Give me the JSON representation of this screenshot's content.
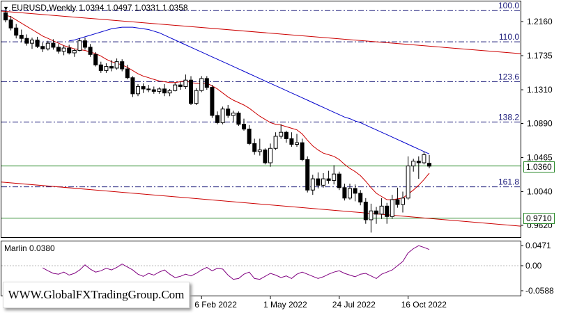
{
  "header": {
    "symbol_timeframe": "EURUSD,Weekly",
    "ohlc": "1.0394 1.0497 1.0331 1.0358"
  },
  "price_axis": [
    "1.2160",
    "1.1735",
    "1.1310",
    "1.0890",
    "1.0465",
    "1.0040",
    "0.9620"
  ],
  "fibonacci_levels": [
    {
      "label": "100.0",
      "value": 1.2297
    },
    {
      "label": "110.0",
      "value": 1.1908
    },
    {
      "label": "123.6",
      "value": 1.1411
    },
    {
      "label": "138.2",
      "value": 1.0908
    },
    {
      "label": "161.8",
      "value": 1.01
    }
  ],
  "horizontal_lines": [
    {
      "label": "1.0360",
      "value": 1.036,
      "color": "#2e8b2e"
    },
    {
      "label": "0.9710",
      "value": 0.971,
      "color": "#2e8b2e"
    }
  ],
  "time_axis": [
    "6 Feb 2022",
    "1 May 2022",
    "24 Jul 2022",
    "16 Oct 2022"
  ],
  "indicator": {
    "name": "Marlin 0.0380",
    "axis": [
      "0.0471",
      "0.00",
      "-0.0588"
    ]
  },
  "watermark": "WWW.GlobalFXTradingGroup.Com",
  "colors": {
    "bull": "#ffffff",
    "bear": "#000000",
    "ma_fast": "#cc0000",
    "ma_slow": "#0000cc",
    "channel": "#cc0000",
    "oscillator": "#800080",
    "fib": "#1a1a7a",
    "level": "#2e8b2e"
  },
  "chart_data": {
    "type": "candlestick",
    "timeframe": "weekly",
    "x_tick_labels": [
      "6 Feb 2022",
      "1 May 2022",
      "24 Jul 2022",
      "16 Oct 2022"
    ],
    "ylim": [
      0.958,
      1.235
    ],
    "candles": [
      [
        1.227,
        1.23,
        1.215,
        1.218
      ],
      [
        1.218,
        1.223,
        1.205,
        1.208
      ],
      [
        1.208,
        1.213,
        1.195,
        1.199
      ],
      [
        1.199,
        1.206,
        1.19,
        1.195
      ],
      [
        1.195,
        1.2,
        1.186,
        1.189
      ],
      [
        1.189,
        1.196,
        1.182,
        1.193
      ],
      [
        1.193,
        1.197,
        1.183,
        1.185
      ],
      [
        1.185,
        1.19,
        1.178,
        1.182
      ],
      [
        1.182,
        1.192,
        1.18,
        1.189
      ],
      [
        1.189,
        1.194,
        1.181,
        1.184
      ],
      [
        1.184,
        1.188,
        1.176,
        1.179
      ],
      [
        1.179,
        1.186,
        1.174,
        1.183
      ],
      [
        1.183,
        1.187,
        1.175,
        1.177
      ],
      [
        1.177,
        1.182,
        1.172,
        1.18
      ],
      [
        1.18,
        1.195,
        1.179,
        1.192
      ],
      [
        1.192,
        1.196,
        1.181,
        1.184
      ],
      [
        1.184,
        1.188,
        1.172,
        1.175
      ],
      [
        1.175,
        1.178,
        1.16,
        1.162
      ],
      [
        1.162,
        1.166,
        1.152,
        1.155
      ],
      [
        1.155,
        1.164,
        1.152,
        1.16
      ],
      [
        1.16,
        1.168,
        1.154,
        1.158
      ],
      [
        1.158,
        1.17,
        1.156,
        1.166
      ],
      [
        1.166,
        1.169,
        1.154,
        1.157
      ],
      [
        1.157,
        1.162,
        1.144,
        1.146
      ],
      [
        1.146,
        1.148,
        1.122,
        1.126
      ],
      [
        1.126,
        1.138,
        1.123,
        1.135
      ],
      [
        1.135,
        1.139,
        1.127,
        1.132
      ],
      [
        1.132,
        1.137,
        1.128,
        1.131
      ],
      [
        1.131,
        1.135,
        1.126,
        1.129
      ],
      [
        1.129,
        1.134,
        1.126,
        1.132
      ],
      [
        1.132,
        1.138,
        1.123,
        1.127
      ],
      [
        1.127,
        1.132,
        1.123,
        1.13
      ],
      [
        1.13,
        1.14,
        1.129,
        1.137
      ],
      [
        1.137,
        1.141,
        1.131,
        1.135
      ],
      [
        1.135,
        1.15,
        1.132,
        1.143
      ],
      [
        1.143,
        1.148,
        1.112,
        1.114
      ],
      [
        1.114,
        1.133,
        1.112,
        1.13
      ],
      [
        1.13,
        1.148,
        1.128,
        1.145
      ],
      [
        1.145,
        1.148,
        1.131,
        1.134
      ],
      [
        1.134,
        1.137,
        1.096,
        1.099
      ],
      [
        1.099,
        1.104,
        1.088,
        1.09
      ],
      [
        1.09,
        1.11,
        1.088,
        1.107
      ],
      [
        1.107,
        1.112,
        1.096,
        1.099
      ],
      [
        1.099,
        1.105,
        1.09,
        1.102
      ],
      [
        1.102,
        1.104,
        1.086,
        1.088
      ],
      [
        1.088,
        1.095,
        1.08,
        1.082
      ],
      [
        1.082,
        1.087,
        1.062,
        1.064
      ],
      [
        1.064,
        1.07,
        1.05,
        1.054
      ],
      [
        1.054,
        1.07,
        1.049,
        1.056
      ],
      [
        1.056,
        1.058,
        1.038,
        1.04
      ],
      [
        1.04,
        1.064,
        1.035,
        1.058
      ],
      [
        1.058,
        1.078,
        1.056,
        1.073
      ],
      [
        1.073,
        1.088,
        1.07,
        1.078
      ],
      [
        1.078,
        1.08,
        1.065,
        1.07
      ],
      [
        1.07,
        1.078,
        1.06,
        1.063
      ],
      [
        1.063,
        1.076,
        1.06,
        1.065
      ],
      [
        1.065,
        1.07,
        1.042,
        1.044
      ],
      [
        1.044,
        1.048,
        1.003,
        1.006
      ],
      [
        1.006,
        1.025,
        1.0,
        1.02
      ],
      [
        1.02,
        1.028,
        1.008,
        1.012
      ],
      [
        1.012,
        1.027,
        1.009,
        1.02
      ],
      [
        1.02,
        1.03,
        1.014,
        1.018
      ],
      [
        1.018,
        1.037,
        1.013,
        1.026
      ],
      [
        1.026,
        1.029,
        1.006,
        1.009
      ],
      [
        1.009,
        1.014,
        0.993,
        0.996
      ],
      [
        0.996,
        1.014,
        0.994,
        1.008
      ],
      [
        1.008,
        1.013,
        0.992,
        1.002
      ],
      [
        1.002,
        1.006,
        0.987,
        0.991
      ],
      [
        0.991,
        0.996,
        0.964,
        0.969
      ],
      [
        0.969,
        0.989,
        0.953,
        0.98
      ],
      [
        0.98,
        0.985,
        0.964,
        0.976
      ],
      [
        0.976,
        0.996,
        0.97,
        0.986
      ],
      [
        0.986,
        0.99,
        0.964,
        0.973
      ],
      [
        0.973,
        1.0,
        0.97,
        0.994
      ],
      [
        0.994,
        1.009,
        0.984,
        0.988
      ],
      [
        0.988,
        1.004,
        0.978,
        0.996
      ],
      [
        0.996,
        1.048,
        0.994,
        1.036
      ],
      [
        1.036,
        1.045,
        1.029,
        1.042
      ],
      [
        1.042,
        1.048,
        1.02,
        1.04
      ],
      [
        1.04,
        1.054,
        1.038,
        1.05
      ],
      [
        1.0394,
        1.0497,
        1.0331,
        1.0358
      ]
    ],
    "ma_fast": [
      1.224,
      1.222,
      1.218,
      1.214,
      1.21,
      1.206,
      1.202,
      1.198,
      1.195,
      1.192,
      1.189,
      1.186,
      1.184,
      1.182,
      1.181,
      1.18,
      1.178,
      1.176,
      1.173,
      1.169,
      1.166,
      1.164,
      1.162,
      1.159,
      1.155,
      1.151,
      1.148,
      1.146,
      1.144,
      1.142,
      1.141,
      1.14,
      1.14,
      1.141,
      1.142,
      1.14,
      1.139,
      1.139,
      1.139,
      1.136,
      1.132,
      1.127,
      1.122,
      1.118,
      1.115,
      1.112,
      1.108,
      1.103,
      1.098,
      1.094,
      1.09,
      1.088,
      1.087,
      1.085,
      1.083,
      1.081,
      1.076,
      1.068,
      1.061,
      1.056,
      1.052,
      1.05,
      1.048,
      1.044,
      1.038,
      1.033,
      1.029,
      1.024,
      1.017,
      1.009,
      1.002,
      0.998,
      0.994,
      0.994,
      0.995,
      0.996,
      1.001,
      1.006,
      1.012,
      1.019,
      1.027
    ],
    "ma_slow": [
      1.192,
      1.193,
      1.195,
      1.197,
      1.199,
      1.201,
      1.203,
      1.205,
      1.207,
      1.208,
      1.209,
      1.209,
      1.209,
      1.208,
      1.207,
      1.206,
      1.204,
      1.202,
      1.199,
      1.196,
      1.193,
      1.19,
      1.187,
      1.184,
      1.181,
      1.178,
      1.175,
      1.172,
      1.169,
      1.166,
      1.163,
      1.16,
      1.157,
      1.154,
      1.151,
      1.148,
      1.145,
      1.142,
      1.139,
      1.136,
      1.133,
      1.13,
      1.127,
      1.124,
      1.121,
      1.118,
      1.115,
      1.112,
      1.109,
      1.106,
      1.103,
      1.1,
      1.097,
      1.095,
      1.092,
      1.09,
      1.087,
      1.084,
      1.081,
      1.078,
      1.075,
      1.072,
      1.069,
      1.066,
      1.063,
      1.06,
      1.057,
      1.054,
      1.051
    ],
    "channel_upper": {
      "from": [
        0,
        1.229
      ],
      "to": [
        86,
        1.176
      ]
    },
    "channel_lower": {
      "from": [
        0,
        1.016
      ],
      "to": [
        86,
        0.961
      ]
    },
    "indicator_series": [
      -0.005,
      -0.012,
      -0.018,
      -0.02,
      -0.015,
      -0.022,
      -0.018,
      -0.01,
      0.002,
      -0.008,
      -0.015,
      -0.012,
      -0.006,
      -0.01,
      -0.004,
      0.004,
      -0.003,
      -0.01,
      -0.02,
      -0.025,
      -0.018,
      -0.022,
      -0.015,
      -0.01,
      -0.02,
      -0.028,
      -0.025,
      -0.02,
      -0.024,
      -0.018,
      -0.01,
      -0.004,
      -0.012,
      -0.006,
      -0.008,
      -0.022,
      -0.032,
      -0.03,
      -0.02,
      -0.015,
      -0.03,
      -0.032,
      -0.025,
      -0.018,
      -0.022,
      -0.028,
      -0.024,
      -0.03,
      -0.02,
      -0.015,
      -0.02,
      -0.025,
      -0.03,
      -0.026,
      -0.02,
      -0.015,
      -0.012,
      -0.018,
      -0.022,
      -0.026,
      -0.02,
      -0.018,
      -0.024,
      -0.03,
      -0.02,
      -0.015,
      -0.01,
      0.0,
      0.01,
      0.03,
      0.04,
      0.0471,
      0.043,
      0.038
    ]
  }
}
